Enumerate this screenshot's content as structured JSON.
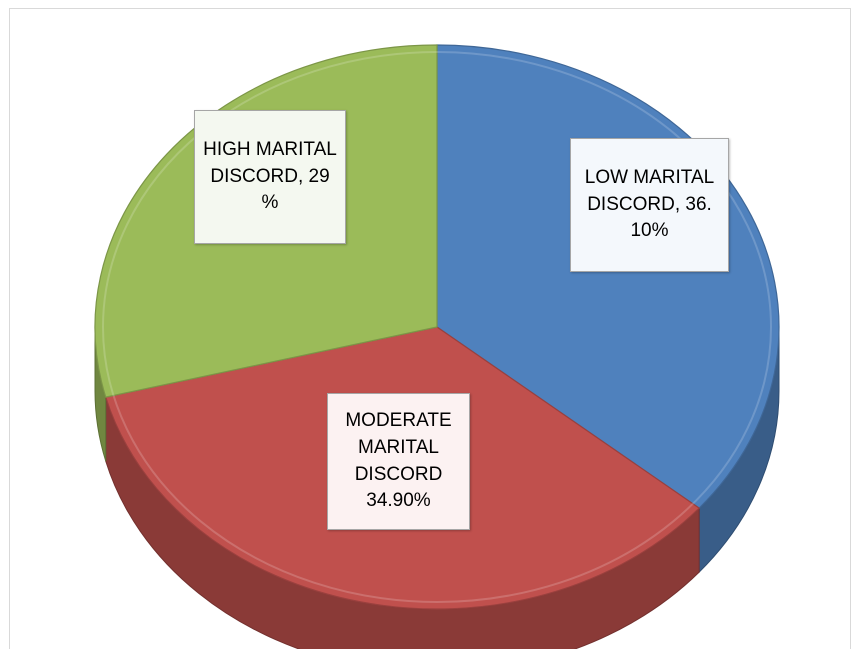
{
  "chart_data": {
    "type": "pie",
    "style": "3d",
    "title": "",
    "slices": [
      {
        "label": "LOW MARITAL DISCORD",
        "value": 36.1,
        "display": "LOW MARITAL DISCORD, 36. 10%",
        "color": "#4f81bd"
      },
      {
        "label": "MODERATE MARITAL DISCORD",
        "value": 34.9,
        "display": "MODERATE MARITAL DISCORD 34.90%",
        "color": "#c0504d"
      },
      {
        "label": "HIGH MARITAL DISCORD",
        "value": 29,
        "display": "HIGH MARITAL DISCORD, 29 %",
        "color": "#9bbb59"
      }
    ],
    "legend": "none"
  },
  "labels": {
    "low": "LOW MARITAL DISCORD, 36. 10%",
    "moderate": "MODERATE MARITAL DISCORD 34.90%",
    "high": "HIGH MARITAL DISCORD, 29 %"
  }
}
